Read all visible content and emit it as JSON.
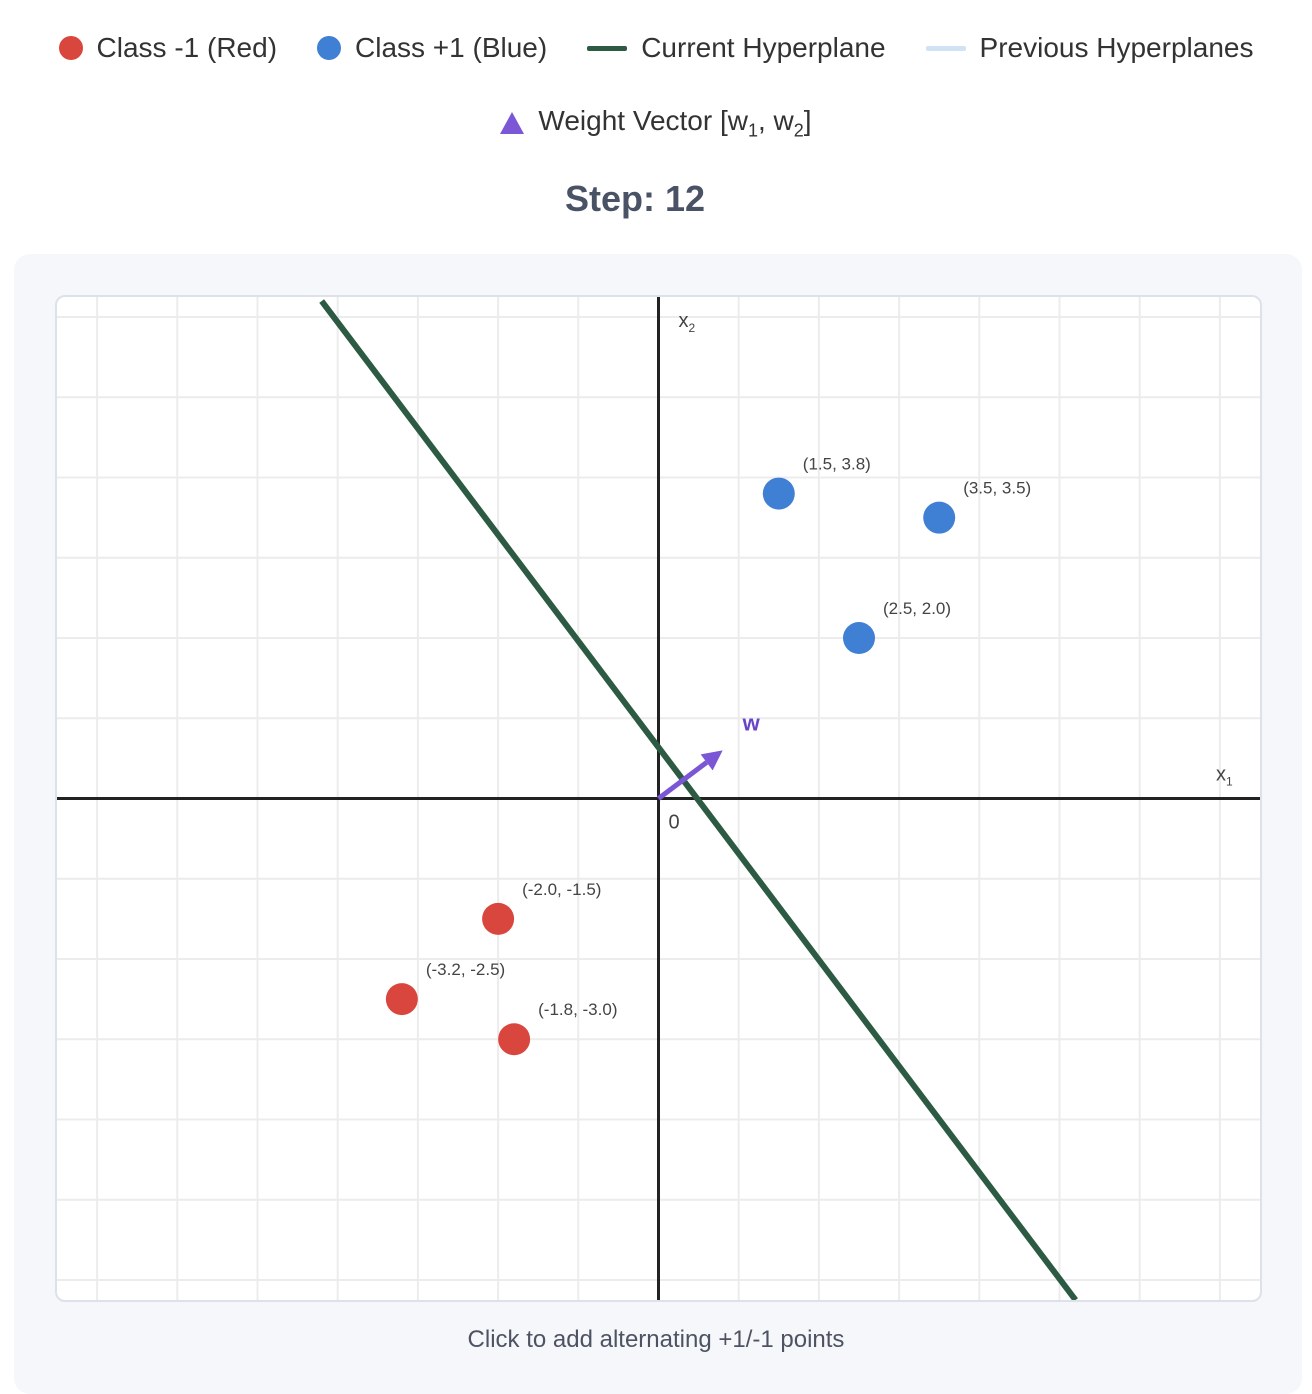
{
  "legend": {
    "class_neg": {
      "label": "Class -1 (Red)",
      "color": "#d9463e",
      "icon": "red-dot-icon"
    },
    "class_pos": {
      "label": "Class +1 (Blue)",
      "color": "#3f7fd4",
      "icon": "blue-dot-icon"
    },
    "current": {
      "label": "Current Hyperplane",
      "color": "#2d5a43",
      "icon": "dark-green-line-icon"
    },
    "previous": {
      "label": "Previous Hyperplanes",
      "color": "#cfe3f5",
      "icon": "light-blue-line-icon"
    },
    "weight": {
      "label_prefix": "Weight Vector [w",
      "sub1": "1",
      "mid": ", w",
      "sub2": "2",
      "suffix": "]",
      "color": "#7b57d6",
      "icon": "purple-triangle-icon"
    }
  },
  "step": {
    "text": "Step: 12"
  },
  "instructions": "Click to add alternating +1/-1 points",
  "chart_data": {
    "type": "scatter",
    "xlim": [
      -7.5,
      7.5
    ],
    "ylim": [
      -6.25,
      6.25
    ],
    "grid": true,
    "grid_step": 1,
    "xlabel": "x",
    "xlabel_sub": "1",
    "ylabel": "x",
    "ylabel_sub": "2",
    "origin_label": "0",
    "series": [
      {
        "name": "Class +1 (Blue)",
        "color": "#3f7fd4",
        "points": [
          {
            "x": 1.5,
            "y": 3.8,
            "label": "(1.5, 3.8)"
          },
          {
            "x": 3.5,
            "y": 3.5,
            "label": "(3.5, 3.5)"
          },
          {
            "x": 2.5,
            "y": 2.0,
            "label": "(2.5, 2.0)"
          }
        ]
      },
      {
        "name": "Class -1 (Red)",
        "color": "#d9463e",
        "points": [
          {
            "x": -2.0,
            "y": -1.5,
            "label": "(-2.0, -1.5)"
          },
          {
            "x": -3.2,
            "y": -2.5,
            "label": "(-3.2, -2.5)"
          },
          {
            "x": -1.8,
            "y": -3.0,
            "label": "(-1.8, -3.0)"
          }
        ]
      }
    ],
    "hyperplane": {
      "name": "Current Hyperplane",
      "color": "#2d5a43",
      "from": [
        -4.2,
        6.2
      ],
      "to": [
        5.2,
        -6.25
      ]
    },
    "weight_vector": {
      "label": "w",
      "color": "#7b57d6",
      "from": [
        0,
        0
      ],
      "to": [
        0.8,
        0.6
      ]
    }
  }
}
